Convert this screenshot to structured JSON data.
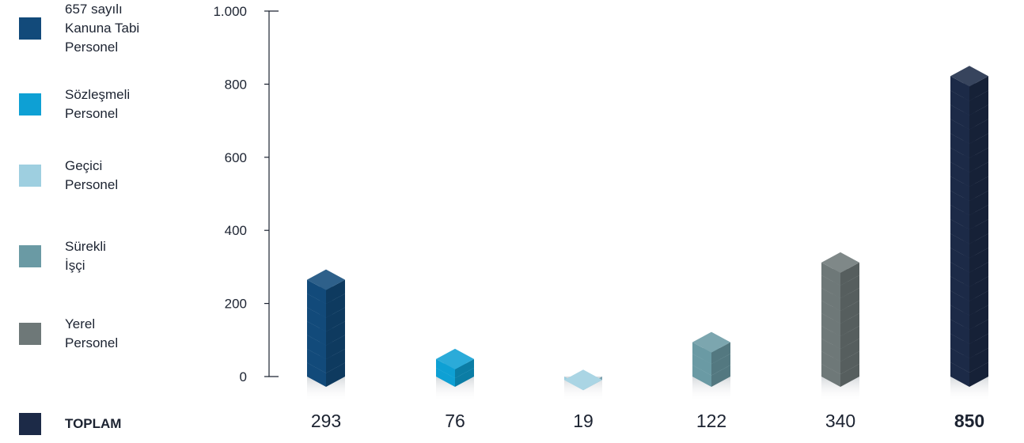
{
  "colors": {
    "s657": "#124a7a",
    "sozlesmeli": "#0ea0d4",
    "gecici": "#9ecfe0",
    "surekli": "#6a9aa4",
    "yerel": "#6e7878",
    "toplam": "#1c2a47",
    "axis": "#1c2331"
  },
  "legend": [
    {
      "label": "657 sayılı\nKanuna Tabi\nPersonel",
      "color": "#124a7a",
      "bold": false
    },
    {
      "label": "Sözleşmeli\nPersonel",
      "color": "#0ea0d4",
      "bold": false
    },
    {
      "label": "Geçici\nPersonel",
      "color": "#9ecfe0",
      "bold": false
    },
    {
      "label": "Sürekli\nİşçi",
      "color": "#6a9aa4",
      "bold": false
    },
    {
      "label": "Yerel\nPersonel",
      "color": "#6e7878",
      "bold": false
    },
    {
      "label": "TOPLAM",
      "color": "#1c2a47",
      "bold": true
    }
  ],
  "chart_data": {
    "type": "bar",
    "categories": [
      "657 sayılı Kanuna Tabi Personel",
      "Sözleşmeli Personel",
      "Geçici Personel",
      "Sürekli İşçi",
      "Yerel Personel",
      "TOPLAM"
    ],
    "values": [
      293,
      76,
      19,
      122,
      340,
      850
    ],
    "value_labels": [
      "293",
      "76",
      "19",
      "122",
      "340",
      "850"
    ],
    "bold_values": [
      false,
      false,
      false,
      false,
      false,
      true
    ],
    "colors": [
      "#124a7a",
      "#0ea0d4",
      "#9ecfe0",
      "#6a9aa4",
      "#6e7878",
      "#1c2a47"
    ],
    "ylim": [
      0,
      1000
    ],
    "yticks": [
      0,
      200,
      400,
      600,
      800,
      1000
    ],
    "ytick_labels": [
      "0",
      "200",
      "400",
      "600",
      "800",
      "1.000"
    ],
    "title": "",
    "xlabel": "",
    "ylabel": "",
    "grid": false,
    "legend_position": "left"
  }
}
